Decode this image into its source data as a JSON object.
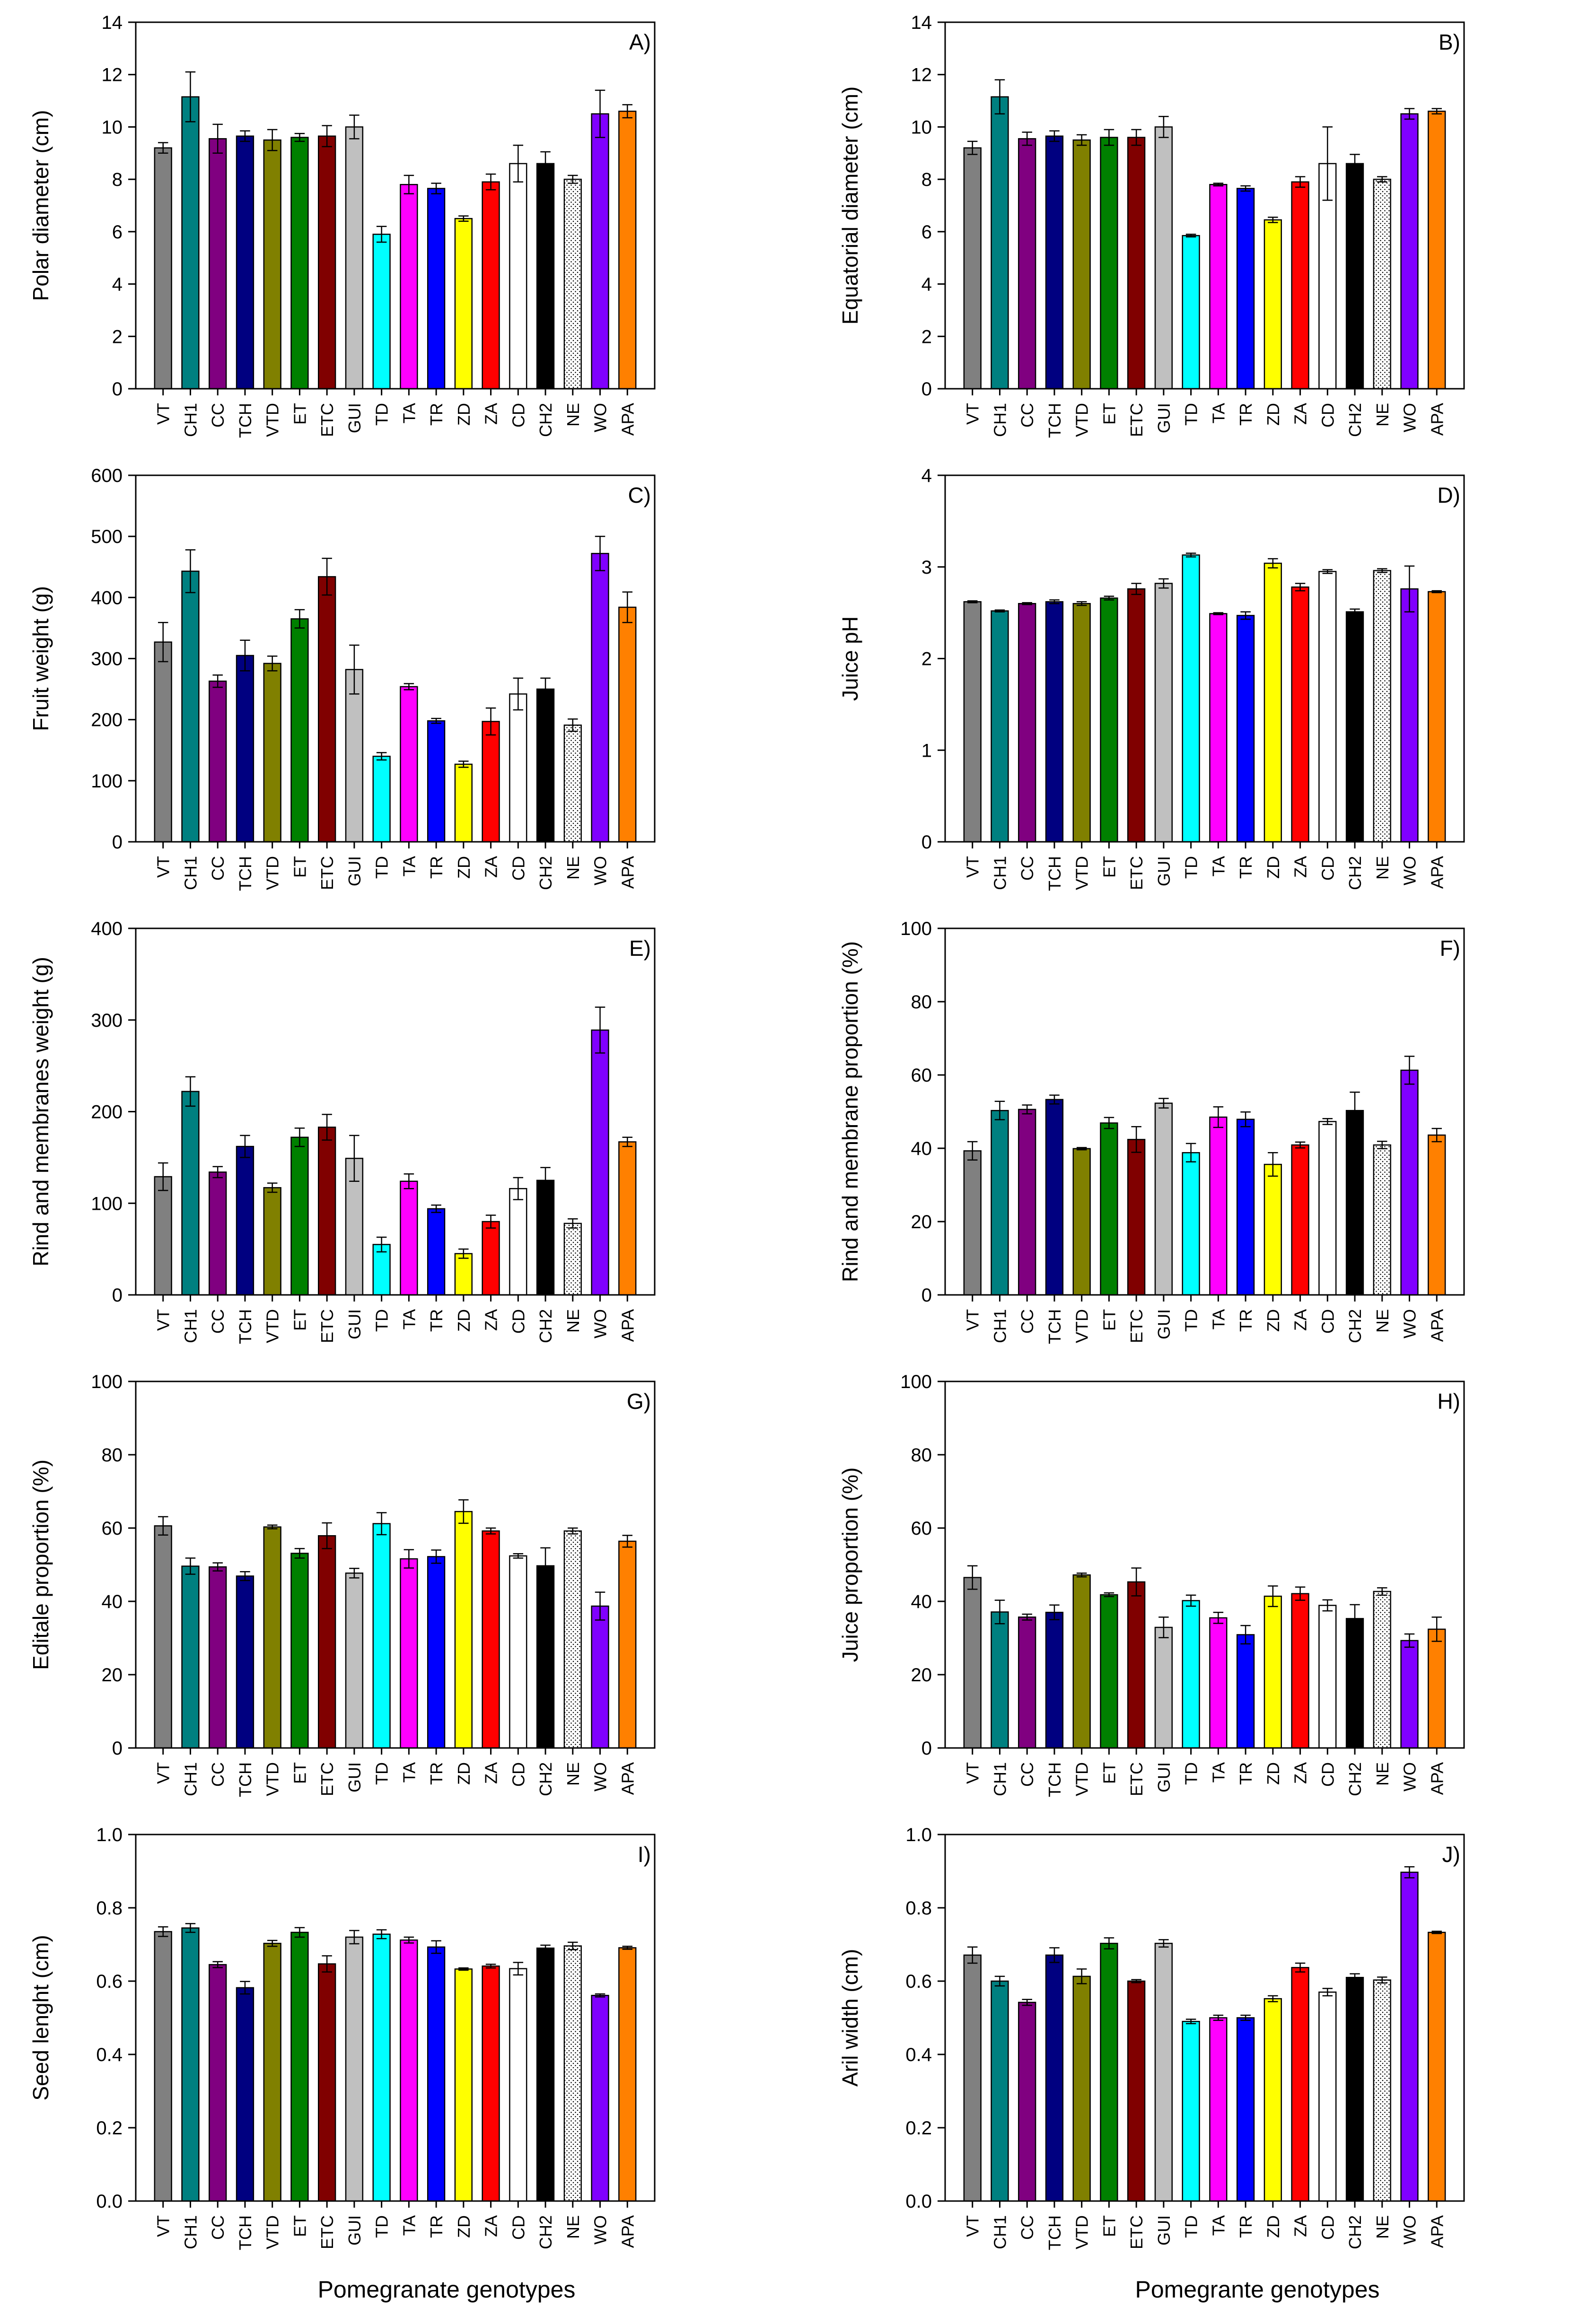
{
  "genotypes": [
    "VT",
    "CH1",
    "CC",
    "TCH",
    "VTD",
    "ET",
    "ETC",
    "GUI",
    "TD",
    "TA",
    "TR",
    "ZD",
    "ZA",
    "CD",
    "CH2",
    "NE",
    "WO",
    "APA"
  ],
  "colors": [
    "#808080",
    "#008080",
    "#800080",
    "#000080",
    "#808000",
    "#008000",
    "#800000",
    "#c0c0c0",
    "#00ffff",
    "#ff00ff",
    "#0000ff",
    "#ffff00",
    "#ff0000",
    "#ffffff",
    "#000000",
    "dotted",
    "#8000ff",
    "#ff8000"
  ],
  "x_titles": {
    "left": "Pomegranate genotypes",
    "right": "Pomegrante genotypes"
  },
  "chart_data": [
    {
      "type": "bar",
      "panel": "A)",
      "ylabel": "Polar diameter (cm)",
      "ylim": [
        0,
        14
      ],
      "yticks": [
        0,
        2,
        4,
        6,
        8,
        10,
        12,
        14
      ],
      "values": [
        9.2,
        11.15,
        9.55,
        9.65,
        9.5,
        9.6,
        9.65,
        10.0,
        5.9,
        7.8,
        7.65,
        6.5,
        7.9,
        8.6,
        8.6,
        8.0,
        10.5,
        10.6
      ],
      "errors": [
        0.2,
        0.95,
        0.55,
        0.2,
        0.4,
        0.15,
        0.4,
        0.45,
        0.3,
        0.35,
        0.2,
        0.1,
        0.3,
        0.7,
        0.45,
        0.15,
        0.9,
        0.25
      ]
    },
    {
      "type": "bar",
      "panel": "B)",
      "ylabel": "Equatorial diameter (cm)",
      "ylim": [
        0,
        14
      ],
      "yticks": [
        0,
        2,
        4,
        6,
        8,
        10,
        12,
        14
      ],
      "values": [
        9.2,
        11.15,
        9.55,
        9.65,
        9.5,
        9.6,
        9.6,
        10.0,
        5.85,
        7.8,
        7.65,
        6.45,
        7.9,
        8.6,
        8.6,
        8.0,
        10.5,
        10.6
      ],
      "errors": [
        0.25,
        0.65,
        0.25,
        0.2,
        0.2,
        0.3,
        0.3,
        0.4,
        0.05,
        0.05,
        0.1,
        0.1,
        0.2,
        1.4,
        0.35,
        0.1,
        0.2,
        0.1
      ]
    },
    {
      "type": "bar",
      "panel": "C)",
      "ylabel": "Fruit weight (g)",
      "ylim": [
        0,
        600
      ],
      "yticks": [
        0,
        100,
        200,
        300,
        400,
        500,
        600
      ],
      "values": [
        327,
        443,
        263,
        305,
        292,
        365,
        434,
        282,
        140,
        254,
        198,
        127,
        197,
        242,
        250,
        191,
        472,
        384
      ],
      "errors": [
        32,
        35,
        10,
        25,
        12,
        15,
        30,
        40,
        6,
        5,
        4,
        5,
        22,
        26,
        18,
        10,
        28,
        25
      ]
    },
    {
      "type": "bar",
      "panel": "D)",
      "ylabel": "Juice pH",
      "ylim": [
        0,
        4
      ],
      "yticks": [
        0,
        1,
        2,
        3,
        4
      ],
      "values": [
        2.62,
        2.52,
        2.6,
        2.62,
        2.6,
        2.66,
        2.76,
        2.82,
        3.13,
        2.49,
        2.47,
        3.04,
        2.78,
        2.95,
        2.51,
        2.96,
        2.76,
        2.73
      ],
      "errors": [
        0.01,
        0.01,
        0.01,
        0.02,
        0.02,
        0.02,
        0.06,
        0.05,
        0.02,
        0.01,
        0.04,
        0.05,
        0.04,
        0.02,
        0.03,
        0.02,
        0.25,
        0.01
      ]
    },
    {
      "type": "bar",
      "panel": "E)",
      "ylabel": "Rind and membranes weight (g)",
      "ylim": [
        0,
        400
      ],
      "yticks": [
        0,
        100,
        200,
        300,
        400
      ],
      "values": [
        129,
        222,
        134,
        162,
        117,
        172,
        183,
        149,
        55,
        124,
        94,
        45,
        80,
        116,
        125,
        78,
        289,
        167
      ],
      "errors": [
        15,
        16,
        6,
        12,
        5,
        10,
        14,
        25,
        8,
        8,
        4,
        5,
        7,
        12,
        14,
        5,
        25,
        5
      ]
    },
    {
      "type": "bar",
      "panel": "F)",
      "ylabel": "Rind and membrane proportion (%)",
      "ylim": [
        0,
        100
      ],
      "yticks": [
        0,
        20,
        40,
        60,
        80,
        100
      ],
      "values": [
        39.3,
        50.3,
        50.6,
        53.3,
        39.9,
        46.9,
        42.4,
        52.3,
        38.8,
        48.5,
        47.9,
        35.6,
        40.9,
        47.3,
        50.3,
        40.9,
        61.3,
        43.6
      ],
      "errors": [
        2.5,
        2.5,
        1.2,
        1.2,
        0.3,
        1.5,
        3.5,
        1.3,
        2.5,
        2.8,
        2.0,
        3.2,
        0.8,
        0.8,
        5.0,
        1.0,
        3.8,
        1.8
      ]
    },
    {
      "type": "bar",
      "panel": "G)",
      "ylabel": "Editale proportion (%)",
      "ylim": [
        0,
        100
      ],
      "yticks": [
        0,
        20,
        40,
        60,
        80,
        100
      ],
      "values": [
        60.6,
        49.6,
        49.4,
        46.9,
        60.3,
        53.1,
        57.9,
        47.7,
        61.2,
        51.6,
        52.2,
        64.5,
        59.2,
        52.4,
        49.7,
        59.2,
        38.7,
        56.4
      ],
      "errors": [
        2.5,
        2.2,
        1.1,
        1.2,
        0.5,
        1.3,
        3.5,
        1.3,
        3.0,
        2.5,
        1.8,
        3.2,
        0.8,
        0.6,
        4.9,
        0.8,
        3.8,
        1.6
      ]
    },
    {
      "type": "bar",
      "panel": "H)",
      "ylabel": "Juice proportion (%)",
      "ylim": [
        0,
        100
      ],
      "yticks": [
        0,
        20,
        40,
        60,
        80,
        100
      ],
      "values": [
        46.5,
        37.1,
        35.7,
        37.0,
        47.2,
        41.8,
        45.3,
        32.9,
        40.2,
        35.5,
        30.9,
        41.4,
        42.1,
        38.9,
        35.3,
        42.7,
        29.3,
        32.4
      ],
      "errors": [
        3.2,
        3.2,
        0.8,
        2.0,
        0.5,
        0.5,
        3.8,
        2.8,
        1.5,
        1.5,
        2.5,
        2.8,
        1.8,
        1.5,
        3.8,
        1.0,
        1.8,
        3.3
      ]
    },
    {
      "type": "bar",
      "panel": "I)",
      "ylabel": "Seed lenght (cm)",
      "ylim": [
        0,
        1.0
      ],
      "yticks": [
        "0.0",
        "0.2",
        "0.4",
        "0.6",
        "0.8",
        "1.0"
      ],
      "values": [
        0.735,
        0.745,
        0.645,
        0.582,
        0.703,
        0.733,
        0.647,
        0.72,
        0.728,
        0.712,
        0.693,
        0.633,
        0.641,
        0.634,
        0.69,
        0.696,
        0.561,
        0.691
      ],
      "errors": [
        0.013,
        0.012,
        0.008,
        0.017,
        0.008,
        0.013,
        0.022,
        0.018,
        0.012,
        0.008,
        0.017,
        0.003,
        0.005,
        0.017,
        0.008,
        0.01,
        0.004,
        0.004
      ]
    },
    {
      "type": "bar",
      "panel": "J)",
      "ylabel": "Aril width (cm)",
      "ylim": [
        0,
        1.0
      ],
      "yticks": [
        "0.0",
        "0.2",
        "0.4",
        "0.6",
        "0.8",
        "1.0"
      ],
      "values": [
        0.671,
        0.6,
        0.542,
        0.671,
        0.613,
        0.703,
        0.6,
        0.703,
        0.49,
        0.5,
        0.5,
        0.552,
        0.637,
        0.57,
        0.61,
        0.603,
        0.897,
        0.733
      ],
      "errors": [
        0.022,
        0.013,
        0.008,
        0.02,
        0.02,
        0.015,
        0.004,
        0.01,
        0.006,
        0.007,
        0.007,
        0.008,
        0.012,
        0.01,
        0.01,
        0.008,
        0.015,
        0.003
      ]
    }
  ]
}
